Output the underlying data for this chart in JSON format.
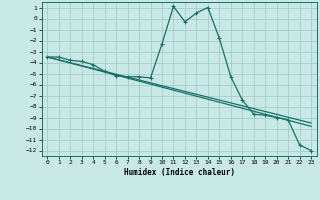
{
  "title": "",
  "xlabel": "Humidex (Indice chaleur)",
  "bg_color": "#c8e8e5",
  "grid_color": "#9dc8c4",
  "line_color": "#1a6e68",
  "xlim": [
    -0.5,
    23.5
  ],
  "ylim": [
    -12.5,
    1.5
  ],
  "xticks": [
    0,
    1,
    2,
    3,
    4,
    5,
    6,
    7,
    8,
    9,
    10,
    11,
    12,
    13,
    14,
    15,
    16,
    17,
    18,
    19,
    20,
    21,
    22,
    23
  ],
  "yticks": [
    1,
    0,
    -1,
    -2,
    -3,
    -4,
    -5,
    -6,
    -7,
    -8,
    -9,
    -10,
    -11,
    -12
  ],
  "curve_main_x": [
    0,
    1,
    2,
    3,
    4,
    5,
    6,
    7,
    8,
    9,
    10,
    11,
    12,
    13,
    14,
    15,
    16,
    17,
    18,
    19,
    20,
    21,
    22,
    23
  ],
  "curve_main_y": [
    -3.5,
    -3.5,
    -3.8,
    -3.9,
    -4.2,
    -4.8,
    -5.2,
    -5.3,
    -5.3,
    -5.4,
    -2.3,
    1.1,
    -0.3,
    0.5,
    1.0,
    -1.8,
    -5.3,
    -7.4,
    -8.7,
    -8.8,
    -9.0,
    -9.2,
    -11.5,
    -12.0
  ],
  "curve_trend1_x": [
    0,
    23
  ],
  "curve_trend1_y": [
    -3.5,
    -9.5
  ]
}
